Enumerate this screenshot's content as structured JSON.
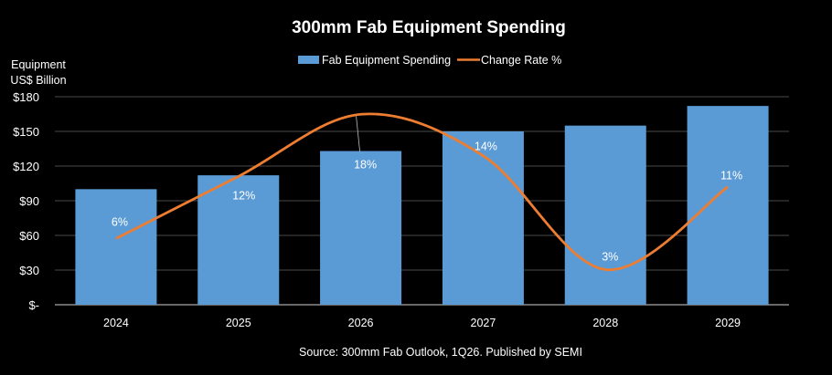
{
  "chart_data": {
    "type": "bar+line",
    "title": "300mm Fab Equipment Spending",
    "ylabel": [
      "Equipment",
      "US$ Billion"
    ],
    "xlabel": "",
    "categories": [
      "2024",
      "2025",
      "2026",
      "2027",
      "2028",
      "2029"
    ],
    "ylim": [
      0,
      180
    ],
    "y_ticks": [
      {
        "value": 0,
        "label": "$-"
      },
      {
        "value": 30,
        "label": "$30"
      },
      {
        "value": 60,
        "label": "$60"
      },
      {
        "value": 90,
        "label": "$90"
      },
      {
        "value": 120,
        "label": "$120"
      },
      {
        "value": 150,
        "label": "$150"
      },
      {
        "value": 180,
        "label": "$180"
      }
    ],
    "secondary_axis_visible": false,
    "y2lim": [
      -0.4,
      19.7
    ],
    "grid": true,
    "legend_position": "top",
    "series": [
      {
        "name": "Fab Equipment Spending",
        "type": "bar",
        "color": "#5b9bd5",
        "values": [
          100,
          112,
          133,
          150,
          155,
          172
        ]
      },
      {
        "name": "Change Rate %",
        "type": "line",
        "smooth": true,
        "axis": "secondary",
        "color": "#ed7d31",
        "values": [
          6,
          12,
          18,
          14,
          3,
          11
        ],
        "data_labels": [
          "6%",
          "12%",
          "18%",
          "14%",
          "3%",
          "11%"
        ]
      }
    ],
    "source": "Source: 300mm Fab Outlook, 1Q26. Published by SEMI",
    "background": "#000000"
  }
}
